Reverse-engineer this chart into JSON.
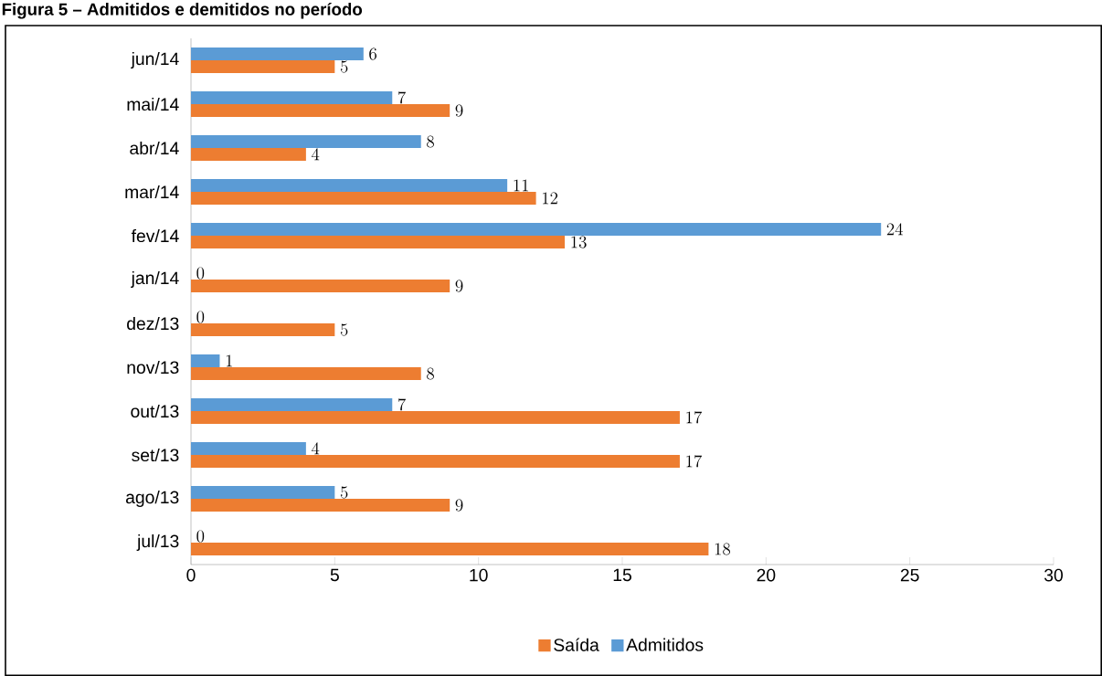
{
  "chart_data": {
    "type": "bar",
    "orientation": "horizontal",
    "title": "Figura 5 – Admitidos e demitidos no período",
    "categories": [
      "jun/14",
      "mai/14",
      "abr/14",
      "mar/14",
      "fev/14",
      "jan/14",
      "dez/13",
      "nov/13",
      "out/13",
      "set/13",
      "ago/13",
      "jul/13"
    ],
    "series": [
      {
        "name": "Saída",
        "color": "#ed7d31",
        "values": [
          5,
          9,
          4,
          12,
          13,
          9,
          5,
          8,
          17,
          17,
          9,
          18
        ]
      },
      {
        "name": "Admitidos",
        "color": "#5b9bd5",
        "values": [
          6,
          7,
          8,
          11,
          24,
          0,
          0,
          1,
          7,
          4,
          5,
          0
        ]
      }
    ],
    "xlim": [
      0,
      30
    ],
    "xticks": [
      0,
      5,
      10,
      15,
      20,
      25,
      30
    ],
    "data_labels": true,
    "legend": "bottom",
    "grid": false
  }
}
